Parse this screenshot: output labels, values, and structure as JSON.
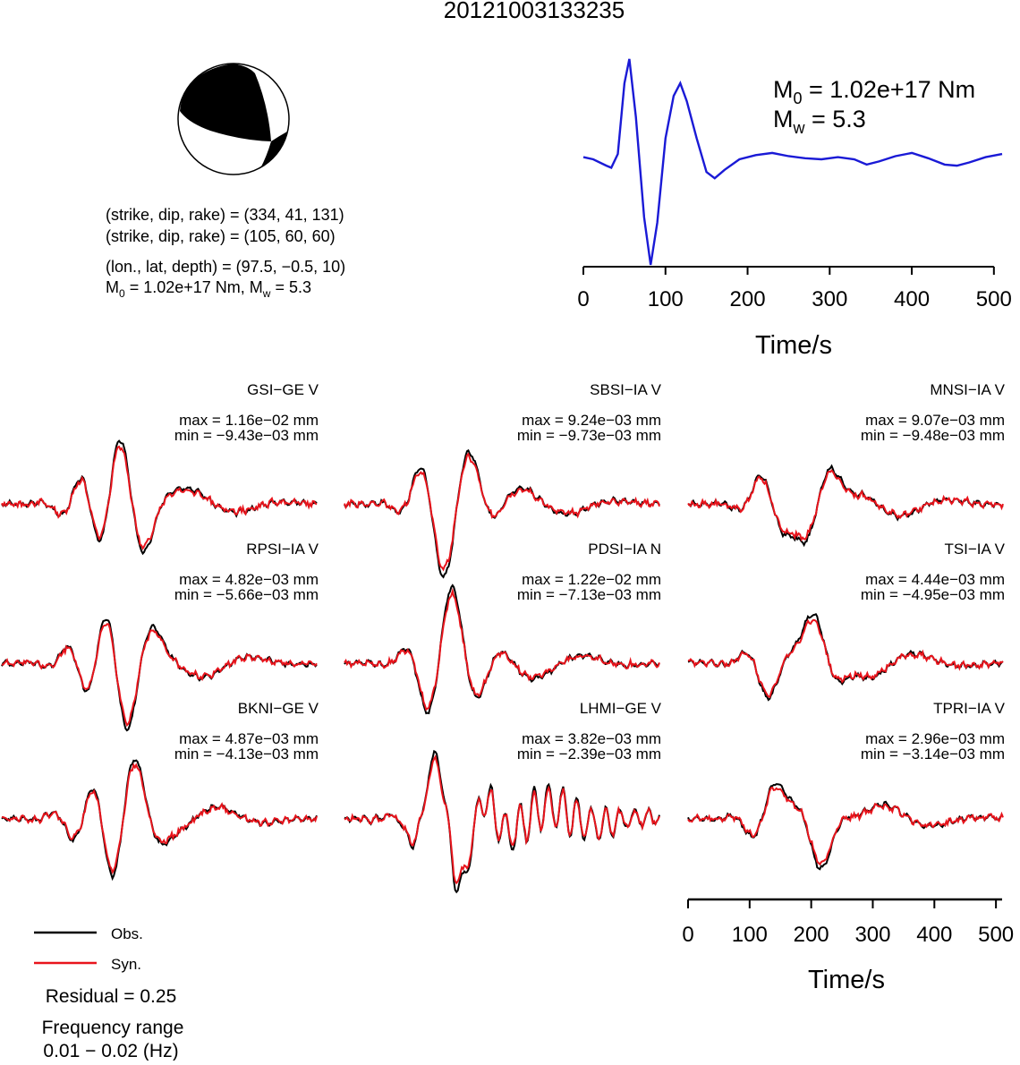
{
  "title": "20121003133235",
  "colors": {
    "observed": "#000000",
    "synthetic": "#e8141c",
    "stf": "#1a1ad6",
    "beachball": "#000000"
  },
  "focal": {
    "line1": "(strike, dip, rake) = (334, 41, 131)",
    "line2": "(strike, dip, rake) = (105, 60, 60)",
    "line3": "(lon., lat, depth) = (97.5, −0.5, 10)",
    "m0_prefix": "M",
    "m0_sub": "0",
    "m0_value": " = 1.02e+17 Nm, M",
    "mw_sub": "w",
    "mw_value": " = 5.3"
  },
  "moment": {
    "m0_prefix": "M",
    "m0_sub": "0",
    "m0_value": " = 1.02e+17 Nm",
    "mw_prefix": "M",
    "mw_sub": "w",
    "mw_value": " = 5.3"
  },
  "legend": {
    "observed": "Obs.",
    "synthetic": "Syn.",
    "residual": "Residual = 0.25",
    "freq_title": "Frequency range",
    "freq_value": "0.01 − 0.02 (Hz)"
  },
  "chart_data": [
    {
      "type": "line",
      "title": "",
      "xlabel": "Time/s",
      "xlim": [
        0,
        510
      ],
      "xticks": [
        "0",
        "100",
        "200",
        "300",
        "400",
        "500"
      ],
      "series": [
        {
          "points": [
            [
              0,
              0.02
            ],
            [
              12,
              0.0
            ],
            [
              28,
              -0.06
            ],
            [
              34,
              -0.08
            ],
            [
              42,
              0.05
            ],
            [
              50,
              0.72
            ],
            [
              56,
              0.95
            ],
            [
              64,
              0.4
            ],
            [
              74,
              -0.55
            ],
            [
              82,
              -1.0
            ],
            [
              90,
              -0.6
            ],
            [
              100,
              0.2
            ],
            [
              110,
              0.6
            ],
            [
              118,
              0.72
            ],
            [
              126,
              0.55
            ],
            [
              138,
              0.2
            ],
            [
              150,
              -0.12
            ],
            [
              160,
              -0.18
            ],
            [
              172,
              -0.1
            ],
            [
              190,
              0.0
            ],
            [
              210,
              0.04
            ],
            [
              230,
              0.06
            ],
            [
              250,
              0.03
            ],
            [
              270,
              0.01
            ],
            [
              290,
              0.0
            ],
            [
              310,
              0.02
            ],
            [
              330,
              0.0
            ],
            [
              345,
              -0.05
            ],
            [
              360,
              -0.02
            ],
            [
              380,
              0.03
            ],
            [
              400,
              0.06
            ],
            [
              420,
              0.01
            ],
            [
              440,
              -0.05
            ],
            [
              455,
              -0.06
            ],
            [
              470,
              -0.03
            ],
            [
              490,
              0.02
            ],
            [
              510,
              0.05
            ]
          ]
        }
      ]
    },
    {
      "type": "line",
      "stations": [
        {
          "name": "GSI−GE V",
          "max": "max = 1.16e−02 mm",
          "min": "min = −9.43e−03 mm"
        },
        {
          "name": "SBSI−IA V",
          "max": "max = 9.24e−03 mm",
          "min": "min = −9.73e−03 mm"
        },
        {
          "name": "MNSI−IA V",
          "max": "max = 9.07e−03 mm",
          "min": "min = −9.48e−03 mm"
        },
        {
          "name": "RPSI−IA V",
          "max": "max = 4.82e−03 mm",
          "min": "min = −5.66e−03 mm"
        },
        {
          "name": "PDSI−IA N",
          "max": "max = 1.22e−02 mm",
          "min": "min = −7.13e−03 mm"
        },
        {
          "name": "TSI−IA V",
          "max": "max = 4.44e−03 mm",
          "min": "min = −4.95e−03 mm"
        },
        {
          "name": "BKNI−GE V",
          "max": "max = 4.87e−03 mm",
          "min": "min = −4.13e−03 mm"
        },
        {
          "name": "LHMI−GE V",
          "max": "max = 3.82e−03 mm",
          "min": "min = −2.39e−03 mm"
        },
        {
          "name": "TPRI−IA V",
          "max": "max = 2.96e−03 mm",
          "min": "min = −3.14e−03 mm"
        }
      ],
      "xlabel": "Time/s",
      "xlim": [
        0,
        510
      ],
      "xticks": [
        "0",
        "100",
        "200",
        "300",
        "400",
        "500"
      ]
    }
  ]
}
